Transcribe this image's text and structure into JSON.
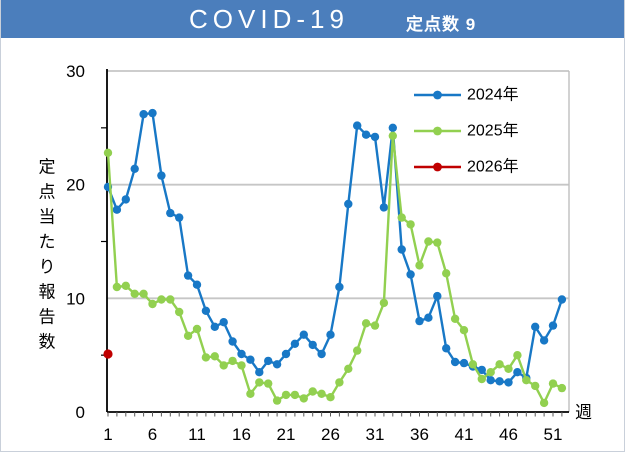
{
  "header": {
    "title": "COVID-19",
    "badge": "定点数 9",
    "bar_color": "#4b7ebc",
    "text_color": "#ffffff"
  },
  "chart_data": {
    "type": "line",
    "title": "COVID-19",
    "xlabel": "週",
    "ylabel": "定点当たり報告数",
    "x_ticks": [
      1,
      6,
      11,
      16,
      21,
      26,
      31,
      36,
      41,
      46,
      51
    ],
    "y_ticks": [
      0,
      10,
      20,
      30
    ],
    "y_minor_ticks": [
      5,
      15,
      25
    ],
    "gridline_values": [
      10,
      20,
      30
    ],
    "xlim": [
      1,
      52
    ],
    "ylim": [
      0,
      30
    ],
    "grid": "horizontal",
    "legend_position": "top-right-inside",
    "colors": {
      "gridline": "#c6c6c6",
      "axis": "#000000",
      "right_spine": "#bfbfbf",
      "x_tick": "#595959"
    },
    "x_weeks_start": 1,
    "series": [
      {
        "name": "2024年",
        "color": "#1878c6",
        "values": [
          19.8,
          17.8,
          18.7,
          21.4,
          26.2,
          26.3,
          20.8,
          17.5,
          17.1,
          12.0,
          11.2,
          8.9,
          7.5,
          7.9,
          6.2,
          5.1,
          4.6,
          3.5,
          4.5,
          4.2,
          5.1,
          6.0,
          6.8,
          5.9,
          5.1,
          6.8,
          11.0,
          18.3,
          25.2,
          24.4,
          24.2,
          18.0,
          25.0,
          14.3,
          12.1,
          8.0,
          8.3,
          10.2,
          5.6,
          4.4,
          4.3,
          4.0,
          3.7,
          2.8,
          2.7,
          2.6,
          3.5,
          3.0,
          7.5,
          6.3,
          7.6,
          9.9
        ]
      },
      {
        "name": "2025年",
        "color": "#92d050",
        "values": [
          22.8,
          11.0,
          11.1,
          10.4,
          10.4,
          9.5,
          9.9,
          9.9,
          8.8,
          6.7,
          7.3,
          4.8,
          4.9,
          4.1,
          4.5,
          4.1,
          1.6,
          2.6,
          2.5,
          1.0,
          1.5,
          1.5,
          1.2,
          1.8,
          1.6,
          1.3,
          2.6,
          3.8,
          5.4,
          7.8,
          7.6,
          9.6,
          24.3,
          17.1,
          16.5,
          12.9,
          15.0,
          14.9,
          12.2,
          8.2,
          7.2,
          4.2,
          2.9,
          3.5,
          4.2,
          3.8,
          5.0,
          2.8,
          2.3,
          0.8,
          2.5,
          2.1
        ]
      },
      {
        "name": "2026年",
        "color": "#c00000",
        "values": [
          5.1
        ]
      }
    ]
  }
}
